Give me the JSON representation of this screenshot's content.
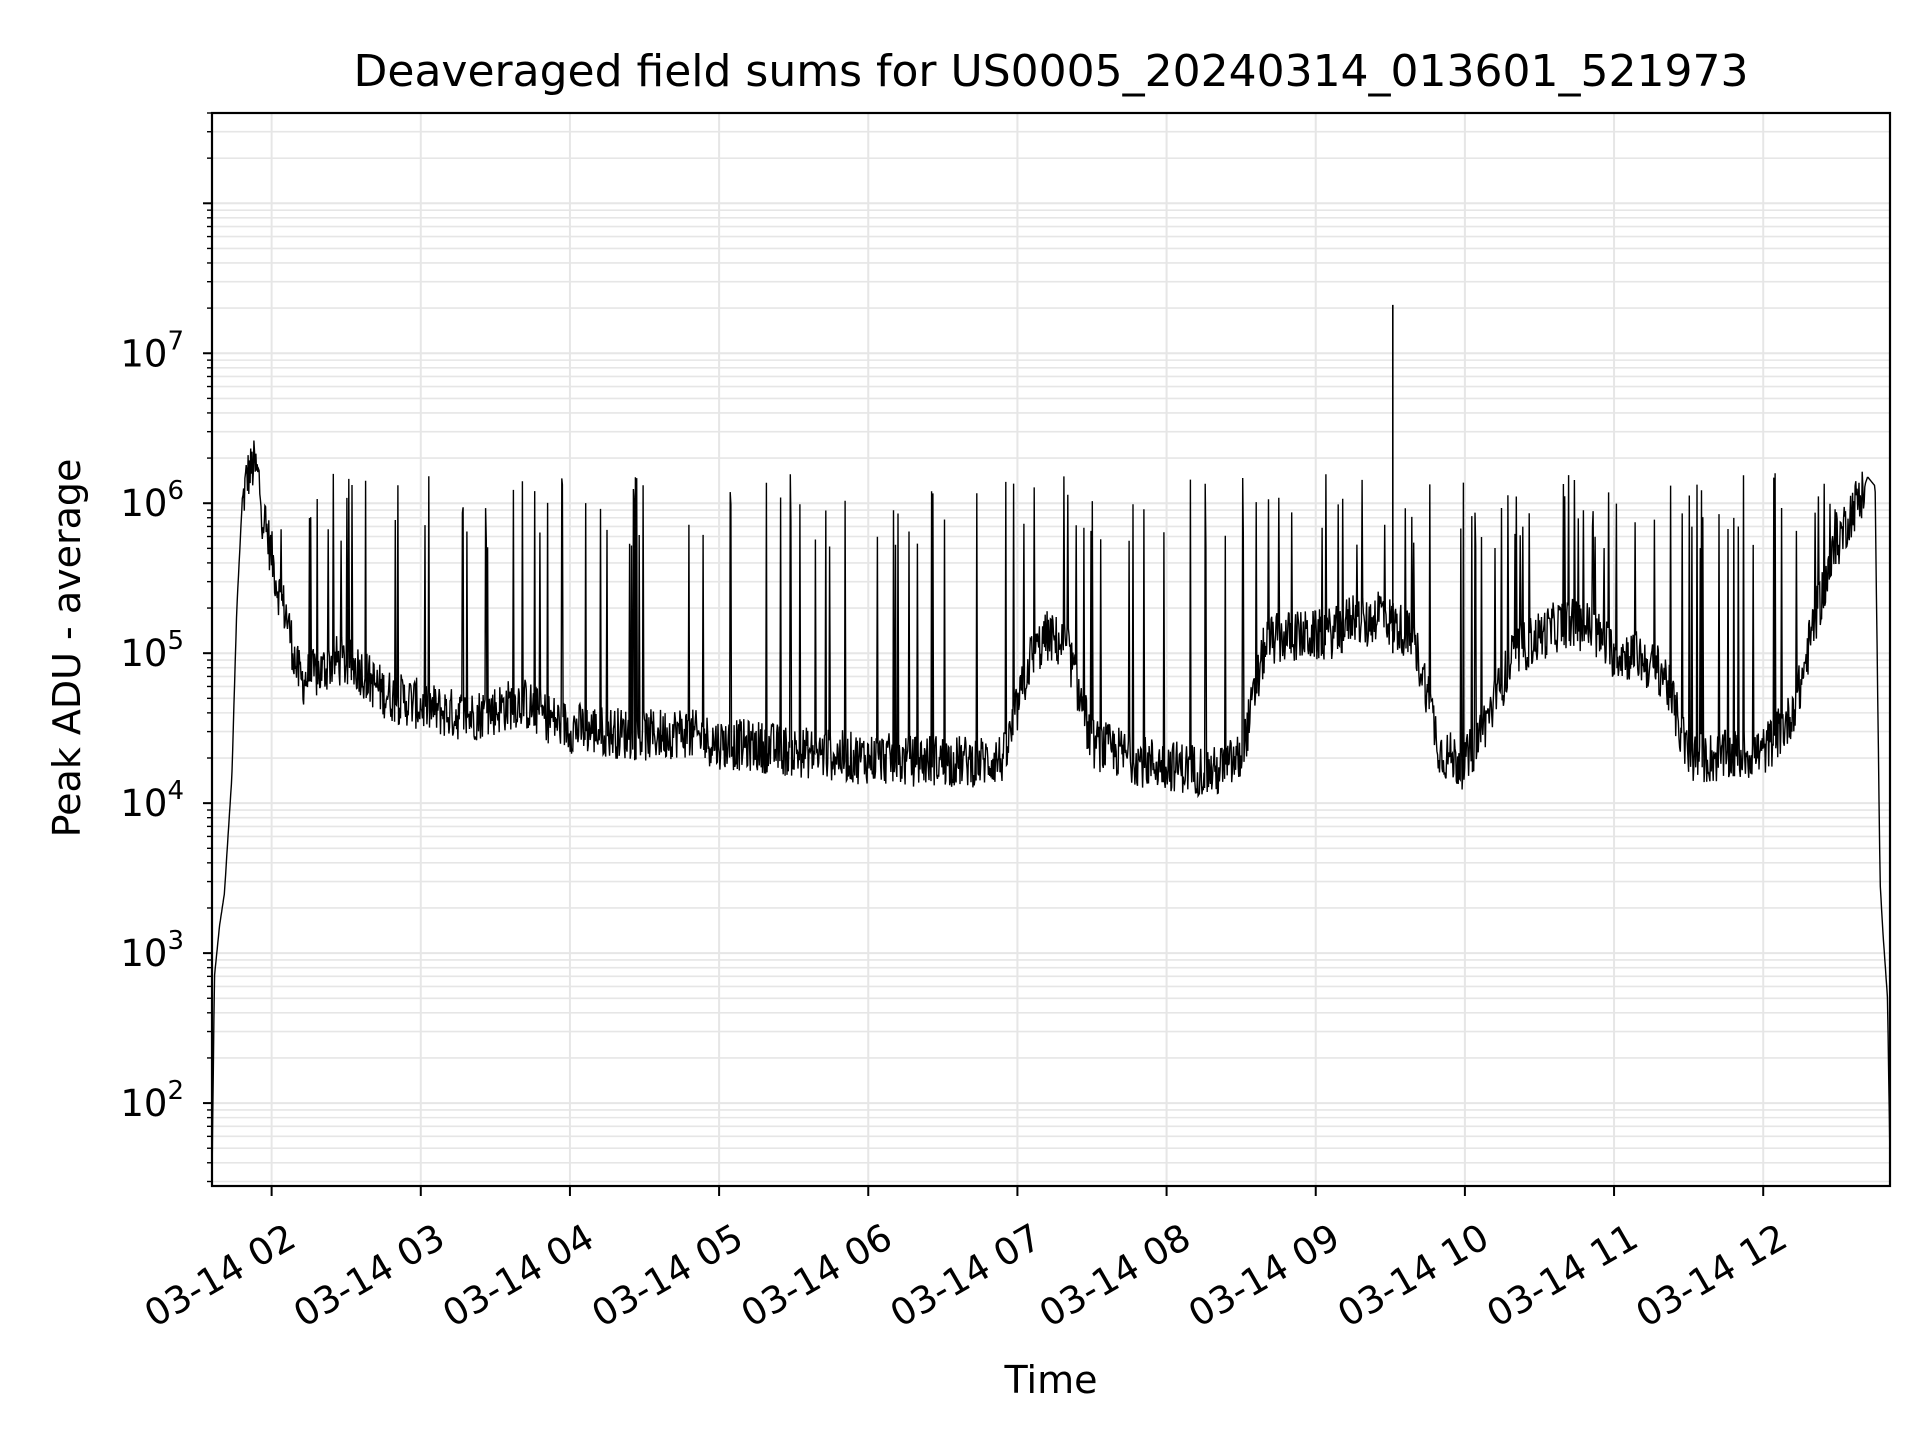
{
  "chart_data": {
    "type": "line",
    "title": "Deaveraged field sums for US0005_20240314_013601_521973",
    "xlabel": "Time",
    "ylabel": "Peak ADU - average",
    "yscale": "log",
    "ylim": [
      28,
      400000000
    ],
    "xlim": [
      "2024-03-14 01:36:01",
      "2024-03-14 12:51:00"
    ],
    "x_ticks": [
      {
        "label": "03-14 02",
        "value": "2024-03-14 02:00"
      },
      {
        "label": "03-14 03",
        "value": "2024-03-14 03:00"
      },
      {
        "label": "03-14 04",
        "value": "2024-03-14 04:00"
      },
      {
        "label": "03-14 05",
        "value": "2024-03-14 05:00"
      },
      {
        "label": "03-14 06",
        "value": "2024-03-14 06:00"
      },
      {
        "label": "03-14 07",
        "value": "2024-03-14 07:00"
      },
      {
        "label": "03-14 08",
        "value": "2024-03-14 08:00"
      },
      {
        "label": "03-14 09",
        "value": "2024-03-14 09:00"
      },
      {
        "label": "03-14 10",
        "value": "2024-03-14 10:00"
      },
      {
        "label": "03-14 11",
        "value": "2024-03-14 11:00"
      },
      {
        "label": "03-14 12",
        "value": "2024-03-14 12:00"
      }
    ],
    "y_ticks": [
      {
        "base": "10",
        "exp": "2",
        "value": 100
      },
      {
        "base": "10",
        "exp": "3",
        "value": 1000
      },
      {
        "base": "10",
        "exp": "4",
        "value": 10000
      },
      {
        "base": "10",
        "exp": "5",
        "value": 100000
      },
      {
        "base": "10",
        "exp": "6",
        "value": 1000000
      },
      {
        "base": "10",
        "exp": "7",
        "value": 10000000
      }
    ],
    "grid": true,
    "line_color": "#000000",
    "grid_color": "#e6e6e6",
    "series": [
      {
        "x": [
          "2024-03-14 01:36:01",
          "2024-03-14 01:37",
          "2024-03-14 01:39",
          "2024-03-14 01:41",
          "2024-03-14 01:44",
          "2024-03-14 01:46",
          "2024-03-14 01:48",
          "2024-03-14 01:50",
          "2024-03-14 01:53",
          "2024-03-14 01:55",
          "2024-03-14 01:56",
          "2024-03-14 01:58",
          "2024-03-14 02:00",
          "2024-03-14 02:02",
          "2024-03-14 02:04",
          "2024-03-14 02:06",
          "2024-03-14 02:08",
          "2024-03-14 02:10",
          "2024-03-14 02:12",
          "2024-03-14 02:15",
          "2024-03-14 02:20",
          "2024-03-14 02:25",
          "2024-03-14 02:30",
          "2024-03-14 02:35",
          "2024-03-14 02:40",
          "2024-03-14 02:45",
          "2024-03-14 02:50",
          "2024-03-14 02:55",
          "2024-03-14 03:00",
          "2024-03-14 03:10",
          "2024-03-14 03:20",
          "2024-03-14 03:30",
          "2024-03-14 03:40",
          "2024-03-14 03:50",
          "2024-03-14 04:00",
          "2024-03-14 04:15",
          "2024-03-14 04:30",
          "2024-03-14 04:45",
          "2024-03-14 05:00",
          "2024-03-14 05:15",
          "2024-03-14 05:30",
          "2024-03-14 05:45",
          "2024-03-14 05:55",
          "2024-03-14 06:05",
          "2024-03-14 06:15",
          "2024-03-14 06:25",
          "2024-03-14 06:35",
          "2024-03-14 06:45",
          "2024-03-14 06:55",
          "2024-03-14 07:05",
          "2024-03-14 07:12",
          "2024-03-14 07:20",
          "2024-03-14 07:30",
          "2024-03-14 07:40",
          "2024-03-14 07:50",
          "2024-03-14 08:00",
          "2024-03-14 08:10",
          "2024-03-14 08:20",
          "2024-03-14 08:30",
          "2024-03-14 08:40",
          "2024-03-14 08:50",
          "2024-03-14 09:00",
          "2024-03-14 09:10",
          "2024-03-14 09:15",
          "2024-03-14 09:20",
          "2024-03-14 09:24",
          "2024-03-14 09:26",
          "2024-03-14 09:30",
          "2024-03-14 09:36",
          "2024-03-14 09:40",
          "2024-03-14 09:45",
          "2024-03-14 09:50",
          "2024-03-14 10:00",
          "2024-03-14 10:10",
          "2024-03-14 10:20",
          "2024-03-14 10:30",
          "2024-03-14 10:40",
          "2024-03-14 10:50",
          "2024-03-14 11:00",
          "2024-03-14 11:10",
          "2024-03-14 11:15",
          "2024-03-14 11:20",
          "2024-03-14 11:30",
          "2024-03-14 11:40",
          "2024-03-14 11:50",
          "2024-03-14 12:00",
          "2024-03-14 12:05",
          "2024-03-14 12:10",
          "2024-03-14 12:15",
          "2024-03-14 12:20",
          "2024-03-14 12:25",
          "2024-03-14 12:30",
          "2024-03-14 12:35",
          "2024-03-14 12:40",
          "2024-03-14 12:42",
          "2024-03-14 12:45",
          "2024-03-14 12:47",
          "2024-03-14 12:48",
          "2024-03-14 12:50",
          "2024-03-14 12:51"
        ],
        "y": [
          30,
          700,
          1500,
          2500,
          15000,
          200000,
          900000,
          1500000,
          1800000,
          1400000,
          900000,
          650000,
          450000,
          300000,
          220000,
          180000,
          120000,
          80000,
          65000,
          70000,
          75000,
          90000,
          85000,
          80000,
          65000,
          55000,
          50000,
          48000,
          45000,
          40000,
          38000,
          42000,
          48000,
          38000,
          32000,
          30000,
          28000,
          30000,
          25000,
          24000,
          22000,
          21000,
          20000,
          20000,
          19000,
          19500,
          19000,
          19000,
          20000,
          90000,
          130000,
          110000,
          25000,
          22000,
          19000,
          18000,
          17000,
          16000,
          20000,
          120000,
          130000,
          130000,
          140000,
          180000,
          150000,
          180000,
          200000,
          160000,
          140000,
          110000,
          55000,
          22000,
          18000,
          40000,
          100000,
          130000,
          160000,
          150000,
          100000,
          95000,
          80000,
          75000,
          20000,
          20000,
          21000,
          22000,
          28000,
          35000,
          60000,
          150000,
          300000,
          550000,
          850000,
          1200000,
          1500000,
          1300000,
          3000,
          1500,
          500,
          40
        ]
      }
    ]
  }
}
